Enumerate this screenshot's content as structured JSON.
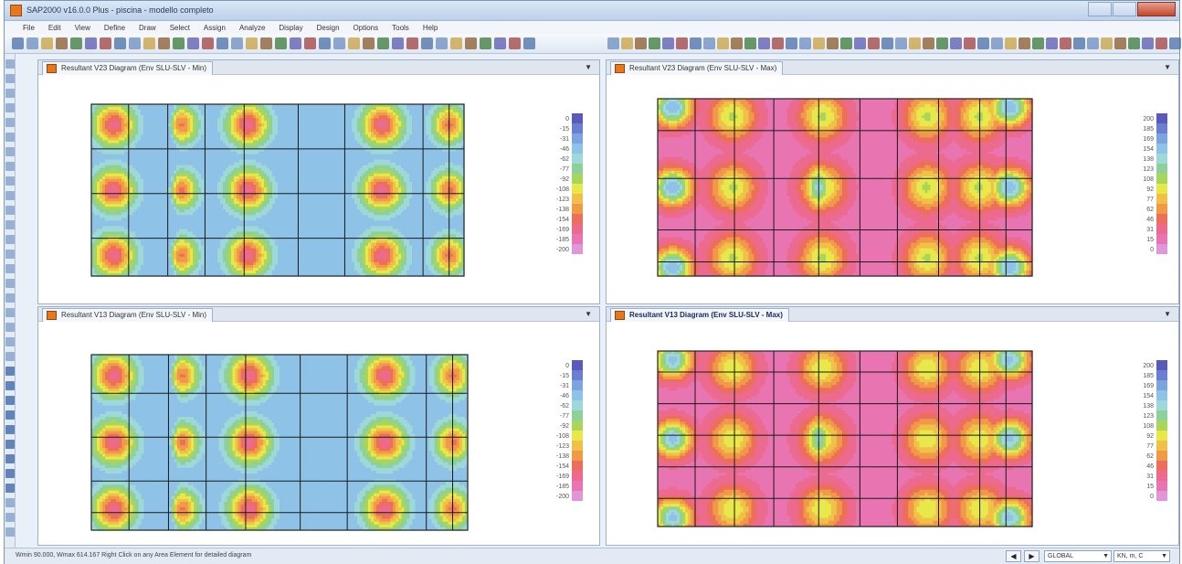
{
  "window": {
    "title": "SAP2000 v16.0.0 Plus - piscina - modello completo"
  },
  "menu": [
    "File",
    "Edit",
    "View",
    "Define",
    "Draw",
    "Select",
    "Assign",
    "Analyze",
    "Display",
    "Design",
    "Options",
    "Tools",
    "Help"
  ],
  "panels": {
    "top_left": {
      "tab": "Resultant V23 Diagram  (Env SLU-SLV - Min)"
    },
    "top_right": {
      "tab": "Resultant V23 Diagram  (Env SLU-SLV - Max)"
    },
    "bottom_left": {
      "tab": "Resultant V13 Diagram  (Env SLU-SLV - Min)"
    },
    "bottom_right": {
      "tab": "Resultant V13 Diagram  (Env SLU-SLV - Max)"
    }
  },
  "legend_min": [
    "0",
    "-15",
    "-31",
    "-46",
    "-62",
    "-77",
    "-92",
    "-108",
    "-123",
    "-138",
    "-154",
    "-169",
    "-185",
    "-200"
  ],
  "legend_max": [
    "200",
    "185",
    "169",
    "154",
    "138",
    "123",
    "108",
    "92",
    "77",
    "62",
    "46",
    "31",
    "15",
    "0"
  ],
  "status": {
    "message": "Wmin 90.000, Wmax 614.167  Right Click on any Area Element for detailed diagram",
    "coord_system": "GLOBAL",
    "units": "KN, m, C"
  },
  "colors": {
    "accent": "#e8761c",
    "scale": [
      "#5a5ab8",
      "#6a7ed2",
      "#7ea4e0",
      "#8ec2e6",
      "#9ed8d8",
      "#8ed09a",
      "#a8d65a",
      "#e8e84a",
      "#f0c048",
      "#f09a48",
      "#ee6e5e",
      "#ec6a8e",
      "#e874b2",
      "#e096d8"
    ]
  }
}
